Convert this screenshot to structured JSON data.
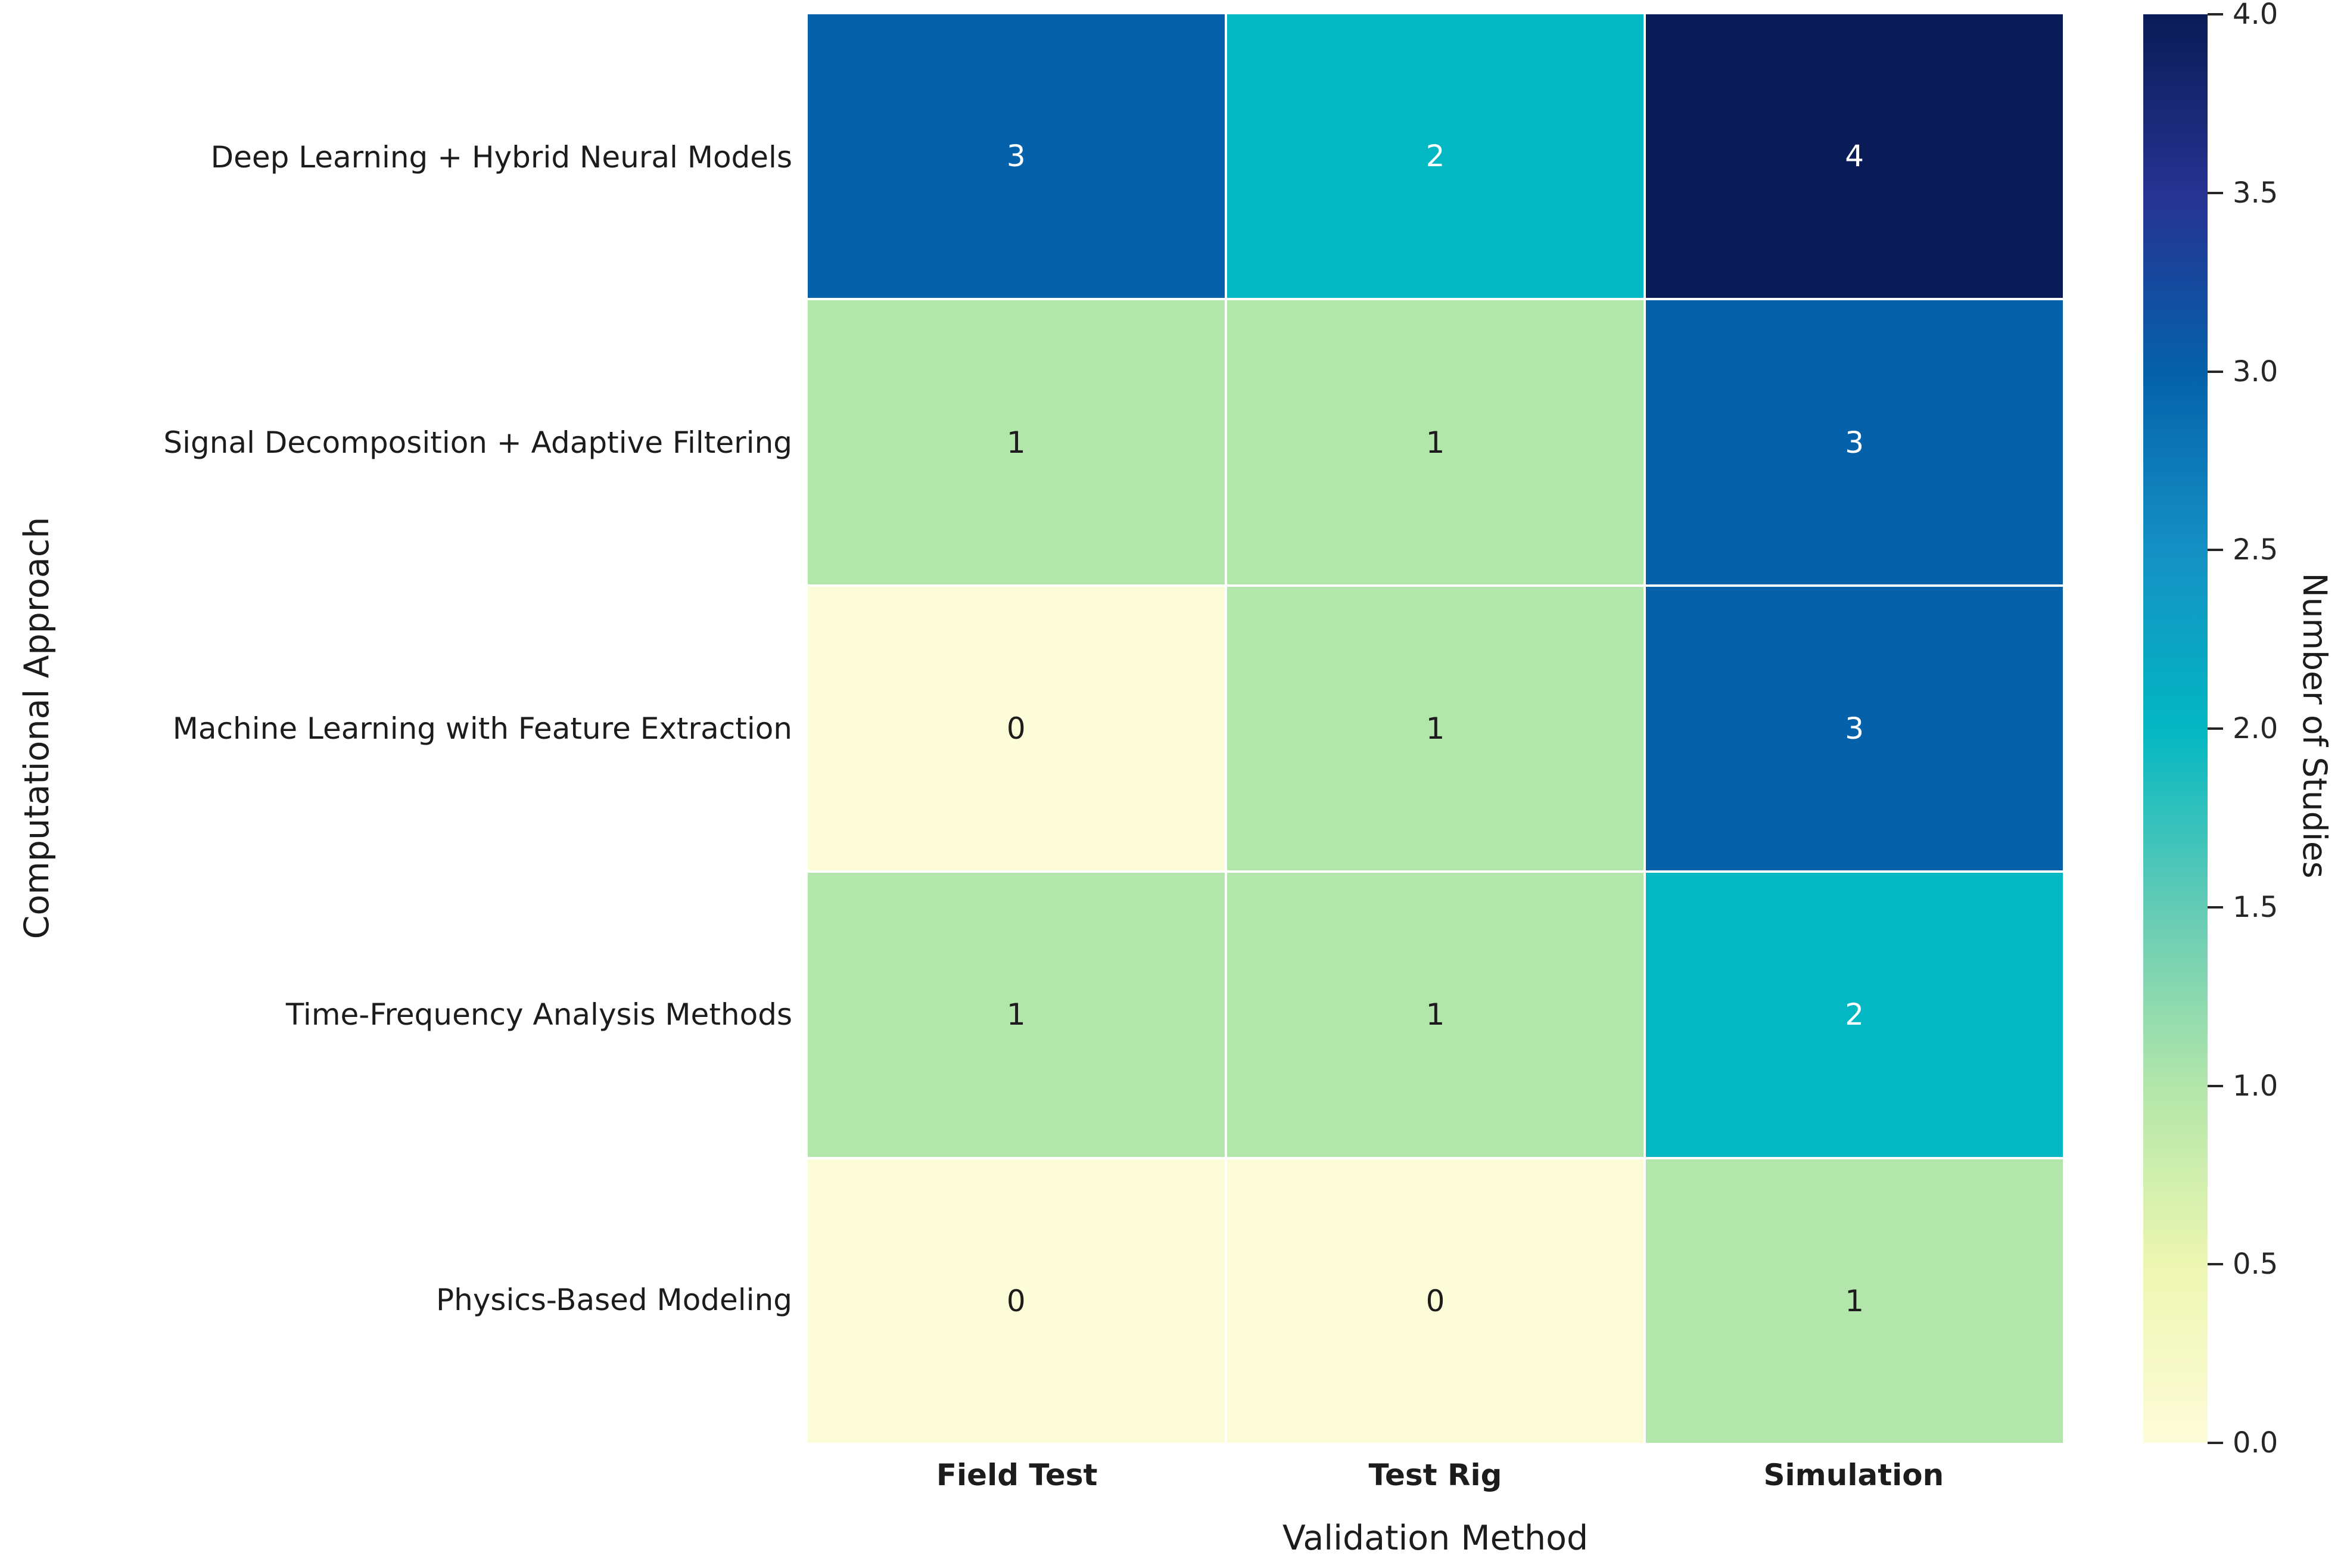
{
  "chart_data": {
    "type": "heatmap",
    "xlabel": "Validation Method",
    "ylabel": "Computational Approach",
    "colorbar_label": "Number of Studies",
    "x_categories": [
      "Field Test",
      "Test Rig",
      "Simulation"
    ],
    "y_categories": [
      "Deep Learning + Hybrid Neural Models",
      "Signal Decomposition + Adaptive Filtering",
      "Machine Learning with Feature Extraction",
      "Time-Frequency Analysis Methods",
      "Physics-Based Modeling"
    ],
    "values": [
      [
        3,
        2,
        4
      ],
      [
        1,
        1,
        3
      ],
      [
        0,
        1,
        3
      ],
      [
        1,
        1,
        2
      ],
      [
        0,
        0,
        1
      ]
    ],
    "vmin": 0,
    "vmax": 4,
    "colormap": "YlGnBu",
    "legend_position": "right",
    "grid": false,
    "colorbar_ticks": [
      "4.0",
      "3.5",
      "3.0",
      "2.5",
      "2.0",
      "1.5",
      "1.0",
      "0.5",
      "0.0"
    ],
    "value_colors": {
      "0": "#FDFCD9",
      "1": "#B2E6AA",
      "2": "#03B7C3",
      "3": "#0561AA",
      "4": "#0A1C57"
    },
    "annotation_text_colors": {
      "0": "#1c1c1c",
      "1": "#1c1c1c",
      "2": "#ffffff",
      "3": "#ffffff",
      "4": "#ffffff"
    },
    "gradient_stops": [
      {
        "pos": 0.0,
        "color": "#FDFCD9"
      },
      {
        "pos": 0.125,
        "color": "#EDF6B1"
      },
      {
        "pos": 0.25,
        "color": "#B2E6AA"
      },
      {
        "pos": 0.375,
        "color": "#63CBB5"
      },
      {
        "pos": 0.5,
        "color": "#03B7C3"
      },
      {
        "pos": 0.625,
        "color": "#1590C4"
      },
      {
        "pos": 0.75,
        "color": "#0561AA"
      },
      {
        "pos": 0.875,
        "color": "#273291"
      },
      {
        "pos": 1.0,
        "color": "#0A1C57"
      }
    ]
  }
}
